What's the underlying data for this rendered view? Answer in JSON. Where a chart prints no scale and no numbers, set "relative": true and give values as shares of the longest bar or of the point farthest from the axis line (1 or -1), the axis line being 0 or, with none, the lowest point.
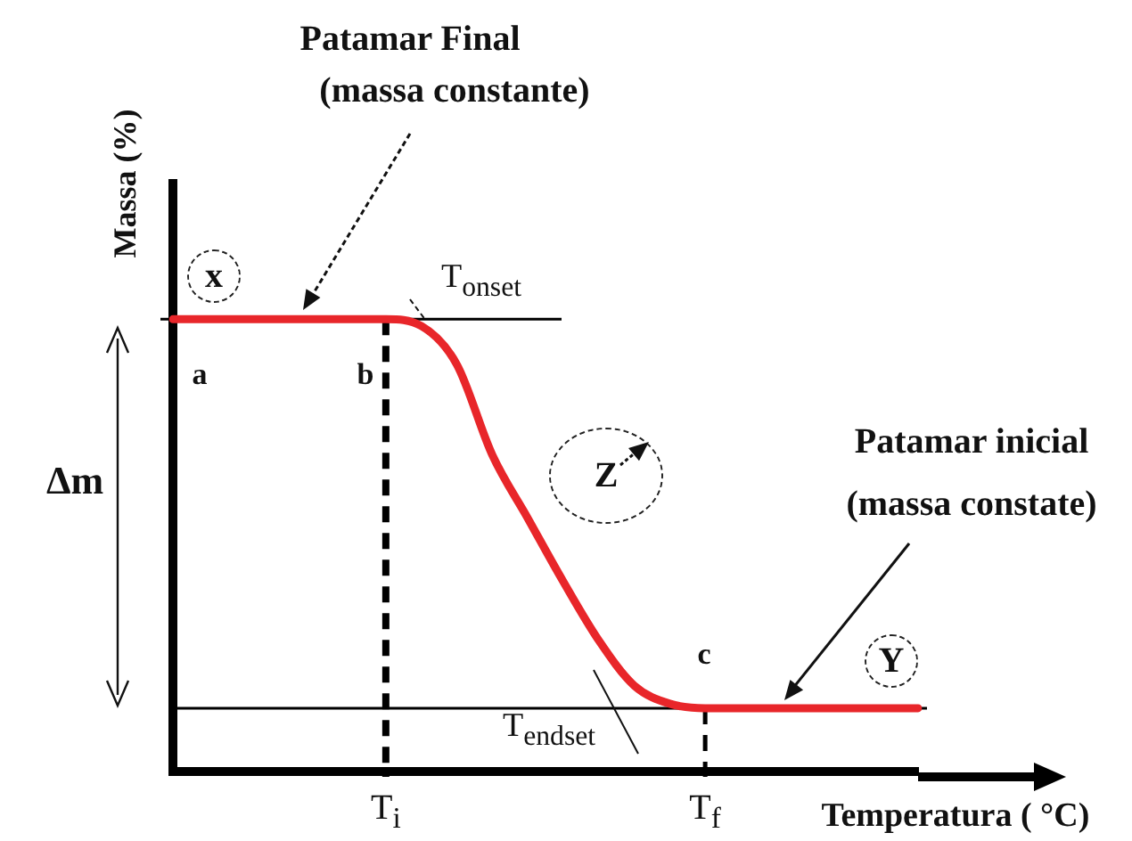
{
  "chart_data": {
    "type": "line",
    "relative": true,
    "xlabel": "Temperatura ( °C)",
    "ylabel": "Massa (%)",
    "categories": [
      null,
      null,
      null,
      null,
      null,
      null,
      "T$_{i}$",
      null,
      null,
      null,
      null,
      null,
      null,
      null,
      null,
      "T$_{f}$",
      null,
      null,
      null,
      null,
      null,
      null
    ],
    "series": [
      {
        "color": "#e8262a",
        "values": [
          1,
          1,
          1,
          1,
          1,
          1,
          1,
          0.985,
          0.9,
          0.7,
          0.56,
          0.42,
          0.29,
          0.19,
          0.15,
          0.14,
          0.14,
          0.14,
          0.14,
          0.14,
          0.14,
          0.14
        ]
      }
    ],
    "marker": "none",
    "ref_lines": [
      {
        "axis": "y",
        "value": 1,
        "label": "T$_{onset}$"
      },
      {
        "axis": "y",
        "value": 0.14,
        "label": "T$_{endset}$"
      },
      {
        "axis": "x",
        "value": "T$_{i}$",
        "line_style": "dashed"
      },
      {
        "axis": "x",
        "value": "T$_{f}$",
        "line_style": "dashed"
      }
    ],
    "annotations": [
      "Patamar Final",
      "(massa constante)",
      "Patamar inicial",
      "(massa constate)",
      "Δm",
      "x",
      "Y",
      "Z",
      {
        "text": "a",
        "y": 1
      },
      {
        "text": "b",
        "y": 1
      },
      {
        "text": "c",
        "y": 0.14
      }
    ]
  }
}
